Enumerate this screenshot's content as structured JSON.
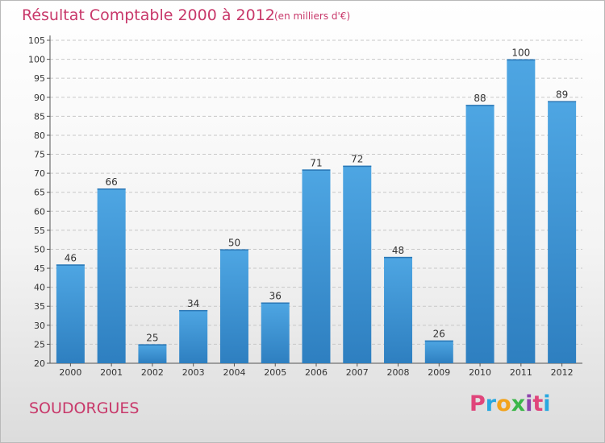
{
  "header": {
    "title": "Résultat Comptable 2000 à 2012",
    "subtitle": "(en milliers d'€)"
  },
  "footer": {
    "town": "SOUDORGUES",
    "brand": "Proxiti",
    "brand_colors": [
      "#e0457b",
      "#29a8e0",
      "#f2a31c",
      "#3cb64a",
      "#8e44ad",
      "#e0457b",
      "#29a8e0"
    ]
  },
  "colors": {
    "bar": "#4ea6e3",
    "bar_dark": "#2e7fc0",
    "title": "#c8386a",
    "grid": "#c8c8c8"
  },
  "chart_data": {
    "type": "bar",
    "title": "Résultat Comptable 2000 à 2012",
    "categories": [
      "2000",
      "2001",
      "2002",
      "2003",
      "2004",
      "2005",
      "2006",
      "2007",
      "2008",
      "2009",
      "2010",
      "2011",
      "2012"
    ],
    "values": [
      46,
      66,
      25,
      34,
      50,
      36,
      71,
      72,
      48,
      26,
      88,
      100,
      89
    ],
    "data_labels": [
      "46",
      "66",
      "25",
      "34",
      "50",
      "36",
      "71",
      "72",
      "48",
      "26",
      "88",
      "100",
      "89"
    ],
    "yticks": [
      "20",
      "25",
      "30",
      "35",
      "40",
      "45",
      "50",
      "55",
      "60",
      "65",
      "70",
      "75",
      "80",
      "85",
      "90",
      "95",
      "100",
      "105"
    ],
    "ylim": [
      20,
      105
    ],
    "grid": true
  }
}
